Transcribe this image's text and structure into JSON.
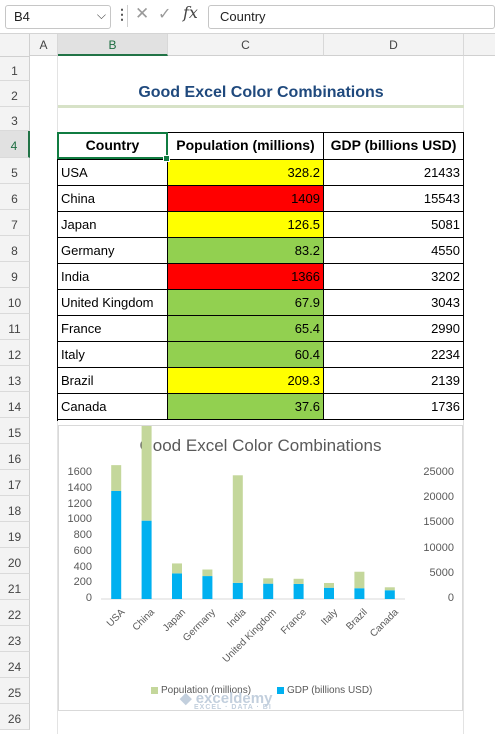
{
  "formula_bar": {
    "name_box": "B4",
    "more_icon": "more-vertical-icon",
    "cancel_icon": "close-icon",
    "enter_icon": "check-icon",
    "fx_label": "fx",
    "formula_value": "Country"
  },
  "columns": [
    "A",
    "B",
    "C",
    "D"
  ],
  "rows": [
    "1",
    "2",
    "3",
    "4",
    "5",
    "6",
    "7",
    "8",
    "9",
    "10",
    "11",
    "12",
    "13",
    "14",
    "15",
    "16",
    "17",
    "18",
    "19",
    "20",
    "21",
    "22",
    "23",
    "24",
    "25",
    "26"
  ],
  "sheet_title": "Good Excel Color Combinations",
  "table": {
    "headers": [
      "Country",
      "Population (millions)",
      "GDP (billions USD)"
    ],
    "rows": [
      {
        "country": "USA",
        "population": "328.2",
        "gdp": "21433",
        "fill": "#ffff00"
      },
      {
        "country": "China",
        "population": "1409",
        "gdp": "15543",
        "fill": "#ff0000"
      },
      {
        "country": "Japan",
        "population": "126.5",
        "gdp": "5081",
        "fill": "#ffff00"
      },
      {
        "country": "Germany",
        "population": "83.2",
        "gdp": "4550",
        "fill": "#92d050"
      },
      {
        "country": "India",
        "population": "1366",
        "gdp": "3202",
        "fill": "#ff0000"
      },
      {
        "country": "United Kingdom",
        "population": "67.9",
        "gdp": "3043",
        "fill": "#92d050"
      },
      {
        "country": "France",
        "population": "65.4",
        "gdp": "2990",
        "fill": "#92d050"
      },
      {
        "country": "Italy",
        "population": "60.4",
        "gdp": "2234",
        "fill": "#92d050"
      },
      {
        "country": "Brazil",
        "population": "209.3",
        "gdp": "2139",
        "fill": "#ffff00"
      },
      {
        "country": "Canada",
        "population": "37.6",
        "gdp": "1736",
        "fill": "#92d050"
      }
    ]
  },
  "chart_data": {
    "type": "bar",
    "stacked": true,
    "title": "Good Excel Color Combinations",
    "categories": [
      "USA",
      "China",
      "Japan",
      "Germany",
      "India",
      "United Kingdom",
      "France",
      "Italy",
      "Brazil",
      "Canada"
    ],
    "series": [
      {
        "name": "Population (millions)",
        "axis": "primary",
        "color": "#c4d79b",
        "values": [
          328.2,
          1409,
          126.5,
          83.2,
          1366,
          67.9,
          65.4,
          60.4,
          209.3,
          37.6
        ]
      },
      {
        "name": "GDP (billions USD)",
        "axis": "secondary",
        "color": "#00b0f0",
        "values": [
          21433,
          15543,
          5081,
          4550,
          3202,
          3043,
          2990,
          2234,
          2139,
          1736
        ]
      }
    ],
    "y_primary": {
      "min": 0,
      "max": 1600,
      "ticks": [
        "0",
        "200",
        "400",
        "600",
        "800",
        "1000",
        "1200",
        "1400",
        "1600"
      ]
    },
    "y_secondary": {
      "min": 0,
      "max": 25000,
      "ticks": [
        "0",
        "5000",
        "10000",
        "15000",
        "20000",
        "25000"
      ]
    },
    "grid": false,
    "legend_position": "bottom"
  },
  "watermark": {
    "name": "exceldemy",
    "tagline": "EXCEL · DATA · BI"
  }
}
